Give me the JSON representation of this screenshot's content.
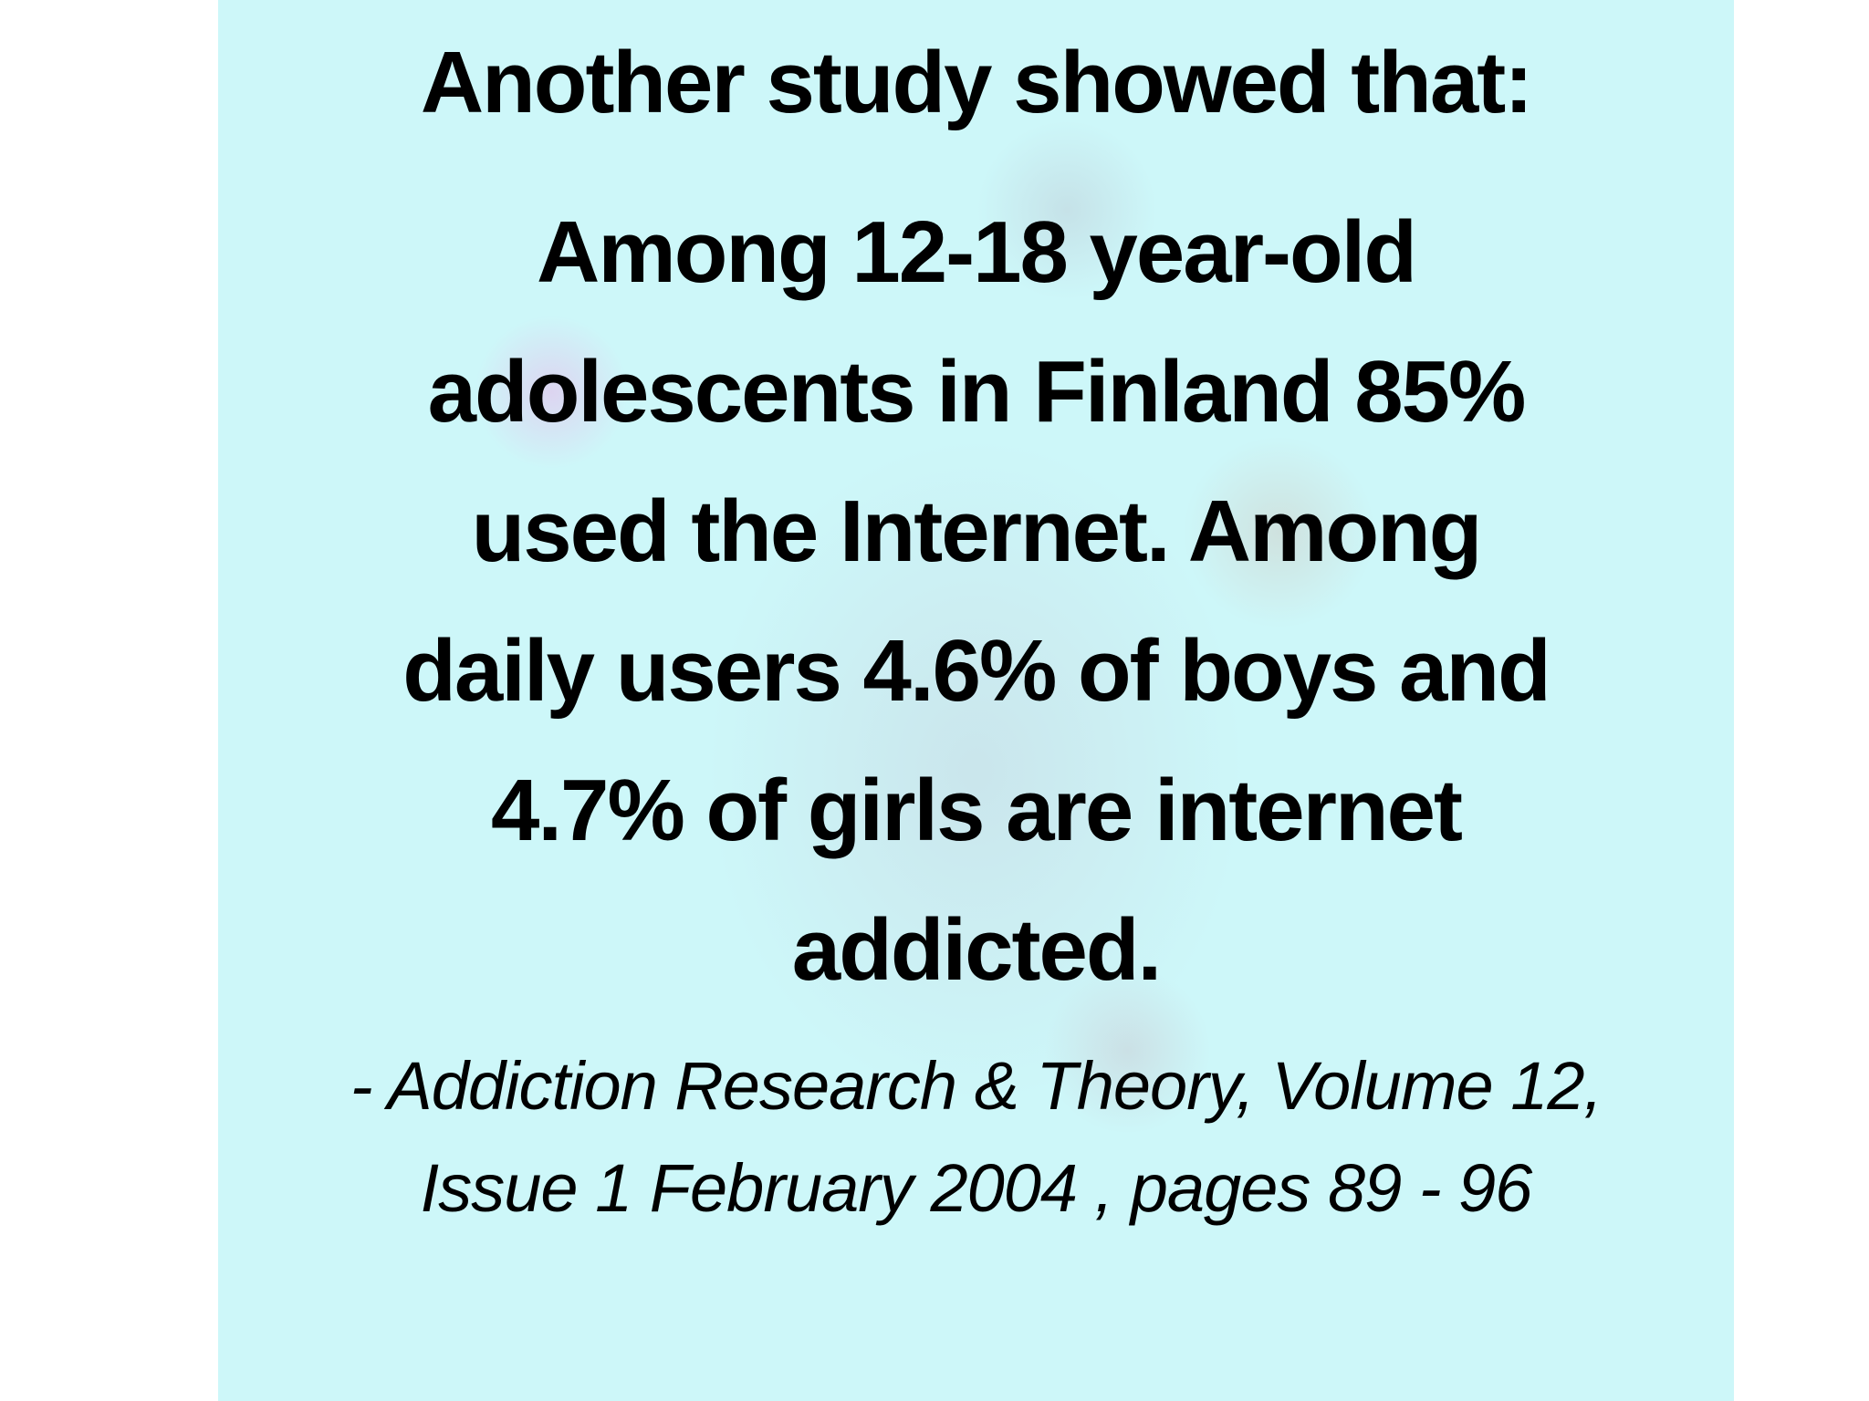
{
  "title": "Another study showed that:",
  "body_lines": [
    "Among 12-18 year-old",
    "adolescents in Finland 85%",
    "used the Internet. Among",
    "daily users 4.6% of boys and",
    "4.7% of girls are internet",
    "addicted."
  ],
  "citation_lines": [
    "- Addiction Research & Theory, Volume 12,",
    "Issue 1 February 2004 , pages 89 - 96"
  ]
}
